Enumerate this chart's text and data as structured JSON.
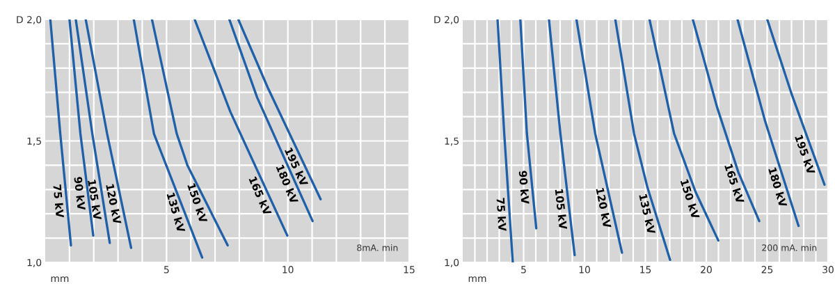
{
  "chart_data": [
    {
      "type": "line",
      "xlabel": "mm",
      "annotations": [
        "8mA. min"
      ],
      "grid": true,
      "legend": false,
      "marker": "none",
      "line_style": "solid",
      "xlim": [
        0,
        15
      ],
      "xticks": [
        {
          "value": 1,
          "label": null
        },
        {
          "value": 2,
          "label": null
        },
        {
          "value": 3,
          "label": null
        },
        {
          "value": 4,
          "label": null
        },
        5,
        {
          "value": 6,
          "label": null
        },
        {
          "value": 7,
          "label": null
        },
        {
          "value": 8,
          "label": null
        },
        {
          "value": 9,
          "label": null
        },
        10,
        {
          "value": 11,
          "label": null
        },
        {
          "value": 12,
          "label": null
        },
        {
          "value": 13,
          "label": null
        },
        {
          "value": 14,
          "label": null
        },
        15
      ],
      "ylim": [
        1.0,
        2.0
      ],
      "yticks": [
        {
          "value": 1.0,
          "label": "1,0"
        },
        {
          "value": 1.1,
          "label": null
        },
        {
          "value": 1.2,
          "label": null
        },
        {
          "value": 1.3,
          "label": null
        },
        {
          "value": 1.4,
          "label": null
        },
        {
          "value": 1.5,
          "label": "1,5"
        },
        {
          "value": 1.6,
          "label": null
        },
        {
          "value": 1.7,
          "label": null
        },
        {
          "value": 1.8,
          "label": null
        },
        {
          "value": 1.9,
          "label": null
        },
        {
          "value": 2.0,
          "label": "D 2,0"
        }
      ],
      "series": [
        {
          "name": "75 kV",
          "color": "#2060a8",
          "x": [
            0.21,
            0.62,
            1.06
          ],
          "values": [
            2.0,
            1.53,
            1.07
          ]
        },
        {
          "name": "90 kV",
          "color": "#2060a8",
          "x": [
            1.0,
            1.45,
            1.98
          ],
          "values": [
            2.0,
            1.53,
            1.11
          ]
        },
        {
          "name": "105 kV",
          "color": "#2060a8",
          "x": [
            1.26,
            1.94,
            2.66
          ],
          "values": [
            2.0,
            1.53,
            1.08
          ]
        },
        {
          "name": "120 kV",
          "color": "#2060a8",
          "x": [
            1.67,
            2.55,
            3.54
          ],
          "values": [
            2.0,
            1.53,
            1.06
          ]
        },
        {
          "name": "135 kV",
          "color": "#2060a8",
          "x": [
            3.65,
            4.48,
            6.47
          ],
          "values": [
            2.0,
            1.53,
            1.02
          ]
        },
        {
          "name": "150 kV",
          "color": "#2060a8",
          "x": [
            4.4,
            5.42,
            5.86,
            7.52
          ],
          "values": [
            2.0,
            1.53,
            1.4,
            1.07
          ]
        },
        {
          "name": "165 kV",
          "color": "#2060a8",
          "x": [
            6.16,
            7.63,
            9.98
          ],
          "values": [
            2.0,
            1.62,
            1.11
          ]
        },
        {
          "name": "180 kV",
          "color": "#2060a8",
          "x": [
            7.59,
            8.73,
            11.02
          ],
          "values": [
            2.0,
            1.68,
            1.17
          ]
        },
        {
          "name": "195 kV",
          "color": "#2060a8",
          "x": [
            7.96,
            9.17,
            11.35
          ],
          "values": [
            2.0,
            1.72,
            1.26
          ]
        }
      ]
    },
    {
      "type": "line",
      "xlabel": "mm",
      "annotations": [
        "200 mA. min"
      ],
      "grid": true,
      "legend": false,
      "marker": "none",
      "line_style": "solid",
      "xlim": [
        0,
        30
      ],
      "xticks": [
        {
          "value": 1,
          "label": null
        },
        {
          "value": 2,
          "label": null
        },
        {
          "value": 3,
          "label": null
        },
        {
          "value": 4,
          "label": null
        },
        5,
        {
          "value": 6,
          "label": null
        },
        {
          "value": 7,
          "label": null
        },
        {
          "value": 8,
          "label": null
        },
        {
          "value": 9,
          "label": null
        },
        10,
        {
          "value": 11,
          "label": null
        },
        {
          "value": 12,
          "label": null
        },
        {
          "value": 13,
          "label": null
        },
        {
          "value": 14,
          "label": null
        },
        15,
        {
          "value": 16,
          "label": null
        },
        {
          "value": 17,
          "label": null
        },
        {
          "value": 18,
          "label": null
        },
        {
          "value": 19,
          "label": null
        },
        20,
        {
          "value": 21,
          "label": null
        },
        {
          "value": 22,
          "label": null
        },
        {
          "value": 23,
          "label": null
        },
        {
          "value": 24,
          "label": null
        },
        25,
        {
          "value": 26,
          "label": null
        },
        {
          "value": 27,
          "label": null
        },
        {
          "value": 28,
          "label": null
        },
        {
          "value": 29,
          "label": null
        },
        30
      ],
      "ylim": [
        1.0,
        2.0
      ],
      "yticks": [
        {
          "value": 1.0,
          "label": "1,0"
        },
        {
          "value": 1.1,
          "label": null
        },
        {
          "value": 1.2,
          "label": null
        },
        {
          "value": 1.3,
          "label": null
        },
        {
          "value": 1.4,
          "label": null
        },
        {
          "value": 1.5,
          "label": "1,5"
        },
        {
          "value": 1.6,
          "label": null
        },
        {
          "value": 1.7,
          "label": null
        },
        {
          "value": 1.8,
          "label": null
        },
        {
          "value": 1.9,
          "label": null
        },
        {
          "value": 2.0,
          "label": "D 2,0"
        }
      ],
      "series": [
        {
          "name": "75 kV",
          "color": "#2060a8",
          "x": [
            2.86,
            3.41,
            4.11
          ],
          "values": [
            2.0,
            1.53,
            1.0
          ]
        },
        {
          "name": "90 kV",
          "color": "#2060a8",
          "x": [
            4.73,
            5.27,
            6.04
          ],
          "values": [
            2.0,
            1.53,
            1.14
          ]
        },
        {
          "name": "105 kV",
          "color": "#2060a8",
          "x": [
            7.08,
            8.02,
            9.19
          ],
          "values": [
            2.0,
            1.53,
            1.03
          ]
        },
        {
          "name": "120 kV",
          "color": "#2060a8",
          "x": [
            9.34,
            10.88,
            13.08
          ],
          "values": [
            2.0,
            1.53,
            1.04
          ]
        },
        {
          "name": "135 kV",
          "color": "#2060a8",
          "x": [
            12.53,
            14.07,
            15.16,
            17.03
          ],
          "values": [
            2.0,
            1.53,
            1.31,
            1.01
          ]
        },
        {
          "name": "150 kV",
          "color": "#2060a8",
          "x": [
            15.34,
            17.36,
            19.12,
            20.99
          ],
          "values": [
            2.0,
            1.53,
            1.29,
            1.09
          ]
        },
        {
          "name": "165 kV",
          "color": "#2060a8",
          "x": [
            18.9,
            20.88,
            22.64,
            24.35
          ],
          "values": [
            2.0,
            1.64,
            1.37,
            1.17
          ]
        },
        {
          "name": "180 kV",
          "color": "#2060a8",
          "x": [
            22.57,
            24.84,
            27.58
          ],
          "values": [
            2.0,
            1.58,
            1.15
          ]
        },
        {
          "name": "195 kV",
          "color": "#2060a8",
          "x": [
            25.01,
            27.03,
            29.71
          ],
          "values": [
            2.0,
            1.69,
            1.32
          ]
        }
      ]
    }
  ]
}
